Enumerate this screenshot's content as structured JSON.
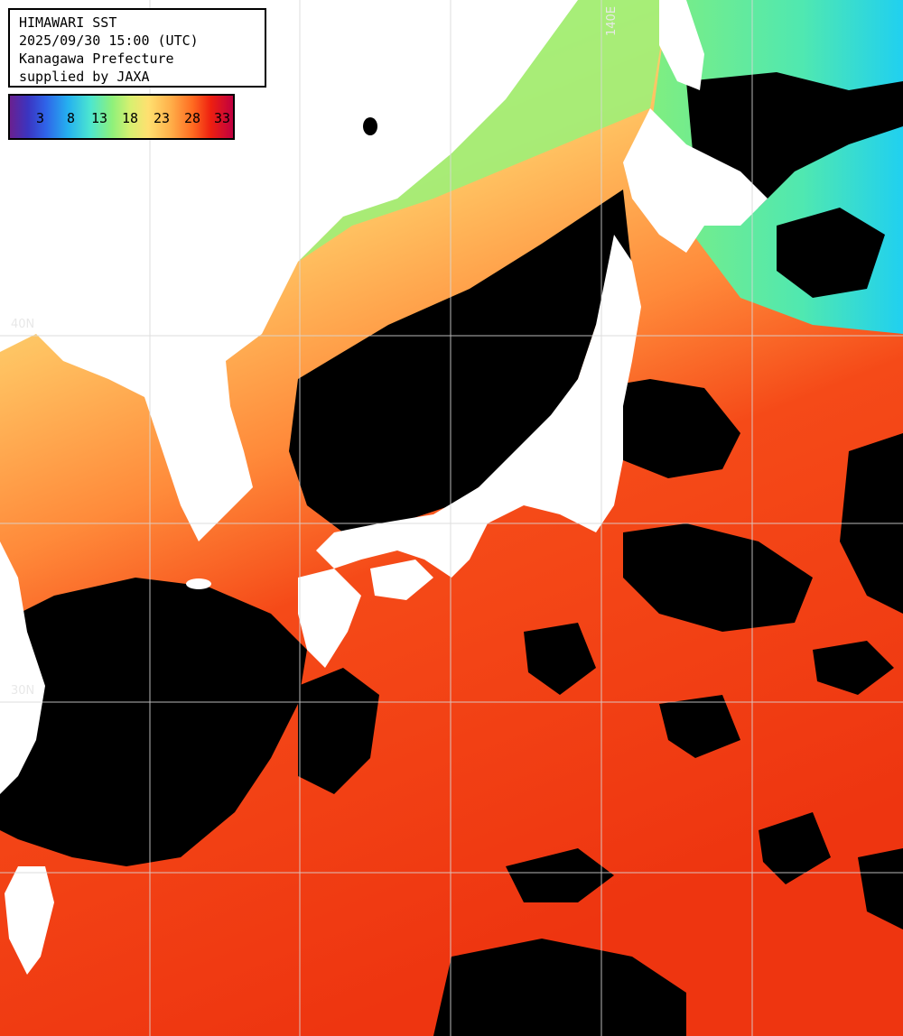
{
  "header": {
    "title": "HIMAWARI SST",
    "datetime": "2025/09/30 15:00 (UTC)",
    "region": "Kanagawa Prefecture",
    "credit": "supplied by JAXA"
  },
  "legend": {
    "ticks": [
      "3",
      "8",
      "13",
      "18",
      "23",
      "28",
      "33"
    ]
  },
  "grid_labels": {
    "lat_40": "40N",
    "lon_140": "140E",
    "lat_30": "30N"
  },
  "colors": {
    "land": "#ffffff",
    "cloud": "#000000",
    "grid": "#d9d9d9",
    "sst_cold": "#25b0f0",
    "sst_mid": "#f0e880",
    "sst_warm": "#ff9a40",
    "sst_hot": "#f03a10"
  }
}
